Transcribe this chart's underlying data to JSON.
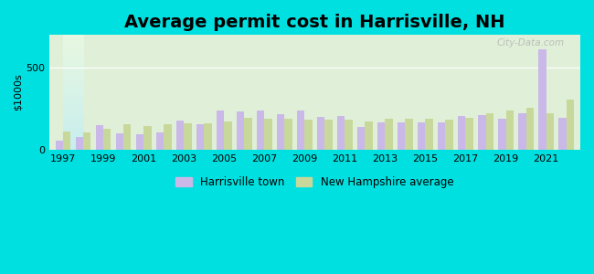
{
  "title": "Average permit cost in Harrisville, NH",
  "ylabel": "$1000s",
  "years": [
    1997,
    1998,
    1999,
    2000,
    2001,
    2002,
    2003,
    2004,
    2005,
    2006,
    2007,
    2008,
    2009,
    2010,
    2011,
    2012,
    2013,
    2014,
    2015,
    2016,
    2017,
    2018,
    2019,
    2020,
    2021,
    2022
  ],
  "harrisville": [
    55,
    75,
    150,
    100,
    95,
    105,
    175,
    155,
    240,
    235,
    240,
    215,
    240,
    200,
    205,
    140,
    165,
    165,
    165,
    165,
    205,
    210,
    190,
    220,
    610,
    195
  ],
  "nh_avg": [
    110,
    105,
    125,
    155,
    145,
    155,
    160,
    160,
    170,
    195,
    190,
    190,
    185,
    185,
    185,
    170,
    190,
    190,
    190,
    185,
    195,
    225,
    240,
    255,
    225,
    305
  ],
  "harrisville_color": "#c9b8e8",
  "nh_avg_color": "#c8d89a",
  "background_outer": "#00e0e0",
  "background_plot_tl": "#e0f0d8",
  "background_plot_br": "#c8eef0",
  "title_fontsize": 14,
  "xlabel_fontsize": 8,
  "ylabel_fontsize": 8,
  "ylim": [
    0,
    700
  ],
  "ytick_val": 500,
  "legend_harrisville": "Harrisville town",
  "legend_nh": "New Hampshire average",
  "watermark": "City-Data.com"
}
